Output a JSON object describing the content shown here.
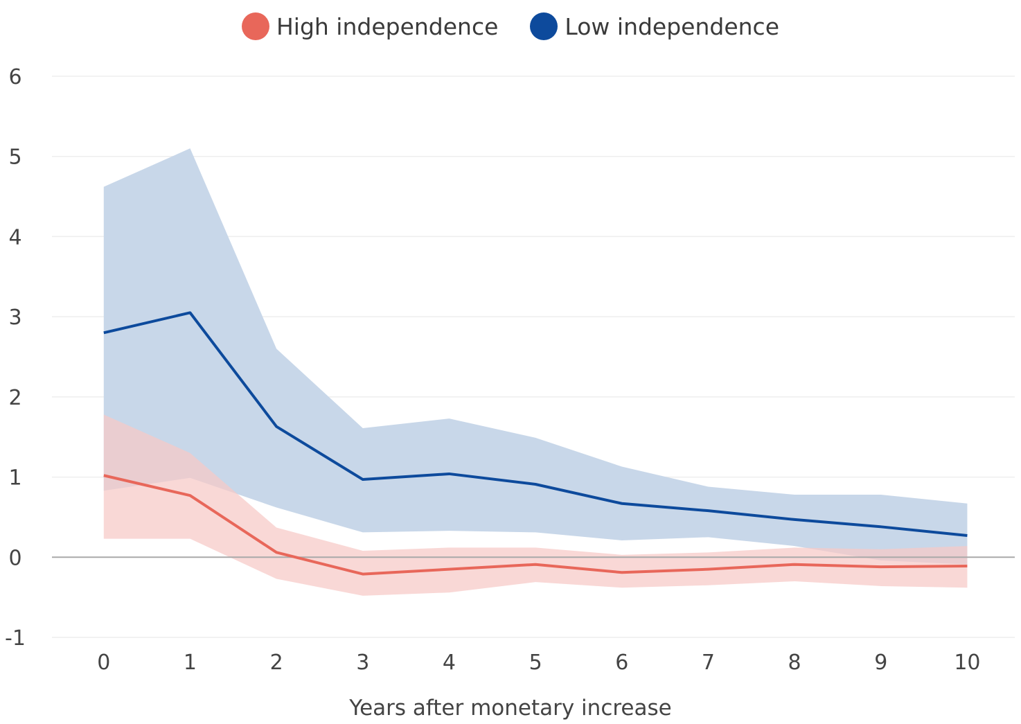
{
  "chart_data": {
    "type": "line",
    "xlabel": "Years after monetary increase",
    "ylabel": "",
    "x": [
      0,
      1,
      2,
      3,
      4,
      5,
      6,
      7,
      8,
      9,
      10
    ],
    "xlim": [
      -0.6,
      10.55
    ],
    "ylim": [
      -1,
      6
    ],
    "yticks": [
      -1,
      0,
      1,
      2,
      3,
      4,
      5,
      6
    ],
    "grid": true,
    "legend_position": "top-center",
    "series": [
      {
        "name": "High independence",
        "color": "#e8675a",
        "band_color": "#f6c9c6",
        "values": [
          1.02,
          0.77,
          0.06,
          -0.21,
          -0.15,
          -0.09,
          -0.19,
          -0.15,
          -0.09,
          -0.12,
          -0.11
        ],
        "upper": [
          1.78,
          1.3,
          0.37,
          0.08,
          0.12,
          0.12,
          0.03,
          0.06,
          0.12,
          0.1,
          0.14
        ],
        "lower": [
          0.23,
          0.23,
          -0.27,
          -0.48,
          -0.44,
          -0.31,
          -0.38,
          -0.35,
          -0.3,
          -0.36,
          -0.38
        ]
      },
      {
        "name": "Low independence",
        "color": "#0d4a9c",
        "band_color": "#c5d5e8",
        "values": [
          2.8,
          3.05,
          1.63,
          0.97,
          1.04,
          0.91,
          0.67,
          0.58,
          0.47,
          0.38,
          0.27
        ],
        "upper": [
          4.62,
          5.1,
          2.6,
          1.61,
          1.73,
          1.49,
          1.13,
          0.88,
          0.78,
          0.78,
          0.67
        ],
        "lower": [
          0.83,
          0.99,
          0.62,
          0.31,
          0.33,
          0.31,
          0.21,
          0.25,
          0.14,
          -0.04,
          -0.09
        ]
      }
    ]
  }
}
